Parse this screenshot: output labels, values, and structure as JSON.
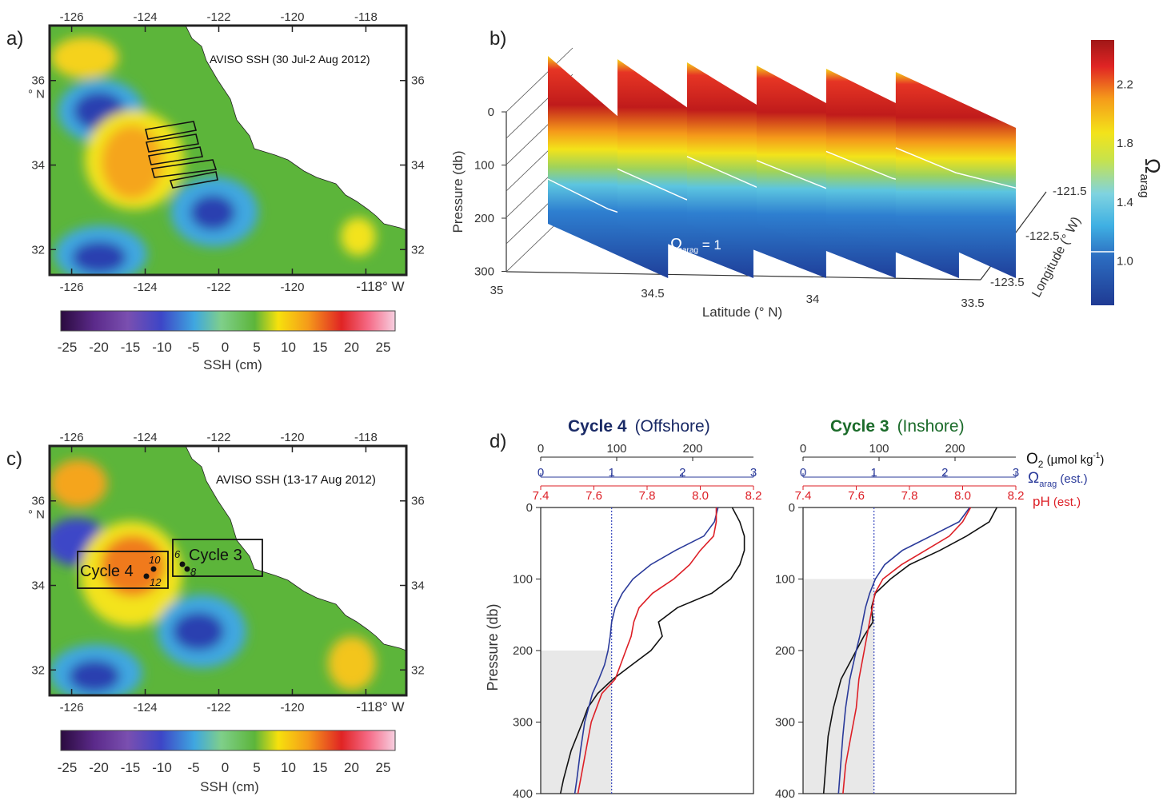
{
  "panels": {
    "a": {
      "label": "a)",
      "annotation": "AVISO SSH (30 Jul-2 Aug 2012)",
      "lon_ticks": [
        "-126",
        "-124",
        "-122",
        "-120",
        "-118"
      ],
      "lon_ticks_bottom": [
        "-126",
        "-124",
        "-122",
        "-120",
        "-118° W"
      ],
      "lat_ticks_left": [
        "36\n° N",
        "34",
        "32"
      ],
      "lat_ticks_right": [
        "36",
        "34",
        "32"
      ]
    },
    "b": {
      "label": "b)",
      "ylabel": "Pressure (db)",
      "pressure_ticks": [
        "0",
        "100",
        "200",
        "300"
      ],
      "latitude_ticks": [
        "35",
        "34.5",
        "34",
        "33.5"
      ],
      "xlabel": "Latitude (° N)",
      "longitude_ticks": [
        "-121.5",
        "-122.5",
        "-123.5"
      ],
      "longitude_label": "Longitude (° W)",
      "contour_label_main": "Ω",
      "contour_label_sub": "arag",
      "contour_label_rest": " = 1",
      "colorbar_ticks": [
        "2.2",
        "1.8",
        "1.4",
        "1.0"
      ],
      "colorbar_symbol": "Ω",
      "colorbar_sub": "arag"
    },
    "c": {
      "label": "c)",
      "annotation": "AVISO SSH (13-17 Aug 2012)",
      "box_labels": [
        "Cycle 4",
        "Cycle 3"
      ],
      "station_labels": [
        "10",
        "12",
        "6",
        "8"
      ]
    },
    "d": {
      "label": "d)",
      "offshore_title_a": "Cycle 4",
      "offshore_title_b": "(Offshore)",
      "inshore_title_a": "Cycle 3",
      "inshore_title_b": "(Inshore)",
      "o2_ticks": [
        "0",
        "100",
        "200"
      ],
      "omega_ticks": [
        "0",
        "1",
        "2",
        "3"
      ],
      "ph_ticks": [
        "7.4",
        "7.6",
        "7.8",
        "8.0",
        "8.2"
      ],
      "pressure_ticks": [
        "0",
        "100",
        "200",
        "300",
        "400"
      ],
      "ylabel": "Pressure (db)",
      "legend_o2_a": "O",
      "legend_o2_sub": "2",
      "legend_o2_b": " (µmol kg",
      "legend_o2_sup": "-1",
      "legend_o2_c": ")",
      "legend_omega_a": "Ω",
      "legend_omega_sub": "arag",
      "legend_omega_b": " (est.)",
      "legend_ph_a": "pH",
      "legend_ph_b": " (est.)"
    }
  },
  "ssh_colorbar": {
    "ticks": [
      "-25",
      "-20",
      "-15",
      "-10",
      "-5",
      "0",
      "5",
      "10",
      "15",
      "20",
      "25"
    ],
    "label": "SSH (cm)"
  },
  "colors": {
    "o2": "#111111",
    "omega": "#2a3a9a",
    "ph": "#dd1f26",
    "shade": "#e8e8e8",
    "land": "#ffffff"
  },
  "chart_data": [
    {
      "type": "heatmap",
      "panel": "a",
      "title": "AVISO SSH (30 Jul-2 Aug 2012)",
      "x_range": [
        -126.6,
        -116.9
      ],
      "y_range": [
        31.4,
        37.3
      ],
      "value_units": "cm",
      "colorbar_range": [
        -27,
        27
      ],
      "features": [
        {
          "kind": "high",
          "lon": -125.3,
          "lat": 36.6,
          "ssh": 12
        },
        {
          "kind": "low",
          "lon": -124.6,
          "lat": 35.2,
          "ssh": -13
        },
        {
          "kind": "high",
          "lon": -123.5,
          "lat": 34.0,
          "ssh": 14
        },
        {
          "kind": "low",
          "lon": -121.7,
          "lat": 33.0,
          "ssh": -13
        },
        {
          "kind": "low",
          "lon": -124.8,
          "lat": 31.9,
          "ssh": -13
        },
        {
          "kind": "high",
          "lon": -118.2,
          "lat": 32.4,
          "ssh": 10
        }
      ],
      "survey_lines": 5
    },
    {
      "type": "heatmap",
      "panel": "c",
      "title": "AVISO SSH (13-17 Aug 2012)",
      "x_range": [
        -126.6,
        -116.9
      ],
      "y_range": [
        31.4,
        37.3
      ],
      "value_units": "cm",
      "colorbar_range": [
        -27,
        27
      ],
      "features": [
        {
          "kind": "high",
          "lon": -125.6,
          "lat": 36.6,
          "ssh": 11
        },
        {
          "kind": "low",
          "lon": -125.6,
          "lat": 35.3,
          "ssh": -14
        },
        {
          "kind": "high",
          "lon": -123.8,
          "lat": 34.4,
          "ssh": 16
        },
        {
          "kind": "low",
          "lon": -122.1,
          "lat": 33.0,
          "ssh": -13
        },
        {
          "kind": "low",
          "lon": -124.7,
          "lat": 31.9,
          "ssh": -12
        },
        {
          "kind": "high",
          "lon": -118.0,
          "lat": 32.2,
          "ssh": 11
        }
      ],
      "boxes": [
        {
          "name": "Cycle 4",
          "lon": [
            -126.0,
            -123.5
          ],
          "lat": [
            33.9,
            34.8
          ]
        },
        {
          "name": "Cycle 3",
          "lon": [
            -123.5,
            -121.0
          ],
          "lat": [
            34.2,
            35.1
          ]
        }
      ],
      "stations": [
        {
          "id": "10",
          "lon": -123.7,
          "lat": 34.4
        },
        {
          "id": "12",
          "lon": -123.9,
          "lat": 34.25
        },
        {
          "id": "6",
          "lon": -122.6,
          "lat": 34.55
        },
        {
          "id": "8",
          "lon": -122.45,
          "lat": 34.45
        }
      ]
    },
    {
      "type": "area",
      "panel": "b",
      "xlabel": "Latitude (° N)",
      "ylabel": "Pressure (db)",
      "x_range": [
        35.0,
        33.5
      ],
      "y_range": [
        0,
        300
      ],
      "z_label": "Longitude (° W)",
      "colorbar_range": [
        0.7,
        2.5
      ],
      "colorbar_ticks": [
        2.2,
        1.8,
        1.4,
        1.0
      ],
      "transects": [
        {
          "lat_start": 35.0,
          "lat_end": 34.62,
          "omega1_depth": 220
        },
        {
          "lat_start": 34.78,
          "lat_end": 34.35,
          "omega1_depth": 200
        },
        {
          "lat_start": 34.56,
          "lat_end": 34.12,
          "omega1_depth": 175
        },
        {
          "lat_start": 34.34,
          "lat_end": 33.9,
          "omega1_depth": 180
        },
        {
          "lat_start": 34.12,
          "lat_end": 33.7,
          "omega1_depth": 160
        },
        {
          "lat_start": 33.9,
          "lat_end": 33.52,
          "omega1_depth": 150
        }
      ]
    },
    {
      "type": "line",
      "panel": "d",
      "title": "Cycle 4 (Offshore)",
      "ylabel": "Pressure (db)",
      "ylim": [
        0,
        400
      ],
      "shade_below_db": 200,
      "omega_unity_line": 1,
      "series": [
        {
          "name": "O2",
          "axis_range": [
            0,
            280
          ],
          "depth": [
            0,
            20,
            40,
            60,
            80,
            100,
            120,
            140,
            160,
            180,
            200,
            220,
            240,
            260,
            280,
            300,
            340,
            380,
            400
          ],
          "values": [
            252,
            262,
            268,
            268,
            262,
            250,
            225,
            180,
            155,
            160,
            145,
            120,
            95,
            75,
            62,
            55,
            40,
            30,
            26
          ]
        },
        {
          "name": "Ωarag",
          "axis_range": [
            0,
            3
          ],
          "depth": [
            0,
            20,
            40,
            60,
            80,
            100,
            120,
            140,
            160,
            180,
            200,
            220,
            240,
            260,
            300,
            340,
            380,
            400
          ],
          "values": [
            2.5,
            2.45,
            2.3,
            1.9,
            1.55,
            1.3,
            1.15,
            1.05,
            1.0,
            0.98,
            0.95,
            0.9,
            0.82,
            0.73,
            0.62,
            0.56,
            0.51,
            0.48
          ]
        },
        {
          "name": "pH",
          "axis_range": [
            7.4,
            8.2
          ],
          "depth": [
            0,
            20,
            40,
            60,
            80,
            100,
            120,
            140,
            160,
            180,
            200,
            220,
            240,
            260,
            300,
            340,
            380,
            400
          ],
          "values": [
            8.06,
            8.06,
            8.05,
            8.0,
            7.96,
            7.9,
            7.82,
            7.77,
            7.75,
            7.74,
            7.72,
            7.7,
            7.68,
            7.63,
            7.59,
            7.57,
            7.55,
            7.54
          ]
        }
      ]
    },
    {
      "type": "line",
      "panel": "d",
      "title": "Cycle 3 (Inshore)",
      "ylabel": "Pressure (db)",
      "ylim": [
        0,
        400
      ],
      "shade_below_db": 100,
      "omega_unity_line": 1,
      "series": [
        {
          "name": "O2",
          "axis_range": [
            0,
            280
          ],
          "depth": [
            0,
            20,
            40,
            60,
            80,
            100,
            120,
            140,
            160,
            180,
            200,
            240,
            280,
            320,
            360,
            400
          ],
          "values": [
            255,
            245,
            215,
            180,
            140,
            115,
            95,
            90,
            92,
            80,
            70,
            50,
            40,
            33,
            30,
            27
          ]
        },
        {
          "name": "Ωarag",
          "axis_range": [
            0,
            3
          ],
          "depth": [
            0,
            20,
            40,
            60,
            80,
            100,
            120,
            140,
            160,
            180,
            200,
            240,
            280,
            320,
            360,
            400
          ],
          "values": [
            2.35,
            2.2,
            1.8,
            1.4,
            1.15,
            1.02,
            0.94,
            0.88,
            0.84,
            0.8,
            0.75,
            0.66,
            0.6,
            0.56,
            0.53,
            0.5
          ]
        },
        {
          "name": "pH",
          "axis_range": [
            7.4,
            8.2
          ],
          "depth": [
            0,
            20,
            40,
            60,
            80,
            100,
            120,
            140,
            160,
            180,
            200,
            240,
            280,
            320,
            360,
            400
          ],
          "values": [
            8.03,
            8.0,
            7.95,
            7.86,
            7.77,
            7.7,
            7.67,
            7.66,
            7.65,
            7.64,
            7.63,
            7.61,
            7.6,
            7.58,
            7.56,
            7.55
          ]
        }
      ]
    }
  ]
}
